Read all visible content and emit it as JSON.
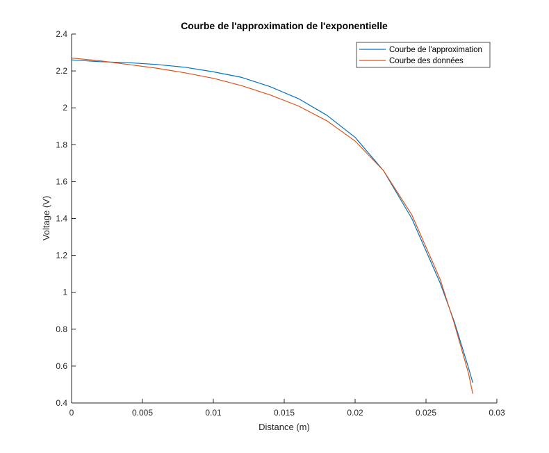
{
  "chart_data": {
    "type": "line",
    "title": "Courbe de l'approximation de l'exponentielle",
    "xlabel": "Distance (m)",
    "ylabel": "Voltage (V)",
    "xlim": [
      0,
      0.03
    ],
    "ylim": [
      0.4,
      2.4
    ],
    "xticks": [
      "0",
      "0.005",
      "0.01",
      "0.015",
      "0.02",
      "0.025",
      "0.03"
    ],
    "yticks": [
      "0.4",
      "0.6",
      "0.8",
      "1",
      "1.2",
      "1.4",
      "1.6",
      "1.8",
      "2",
      "2.2",
      "2.4"
    ],
    "grid": false,
    "legend_position": "top-right",
    "series": [
      {
        "name": "Courbe de l'approximation",
        "color": "#0072BD",
        "x": [
          0,
          0.002,
          0.004,
          0.006,
          0.008,
          0.01,
          0.012,
          0.014,
          0.016,
          0.018,
          0.02,
          0.022,
          0.024,
          0.026,
          0.027,
          0.028,
          0.0283
        ],
        "y": [
          2.26,
          2.25,
          2.245,
          2.235,
          2.22,
          2.195,
          2.165,
          2.115,
          2.05,
          1.96,
          1.84,
          1.66,
          1.4,
          1.05,
          0.84,
          0.59,
          0.51
        ]
      },
      {
        "name": "Courbe des données",
        "color": "#D95319",
        "x": [
          0,
          0.002,
          0.004,
          0.006,
          0.008,
          0.01,
          0.012,
          0.014,
          0.016,
          0.018,
          0.02,
          0.022,
          0.024,
          0.026,
          0.027,
          0.028,
          0.0283
        ],
        "y": [
          2.27,
          2.255,
          2.235,
          2.215,
          2.19,
          2.16,
          2.12,
          2.07,
          2.01,
          1.93,
          1.82,
          1.66,
          1.42,
          1.07,
          0.83,
          0.56,
          0.45
        ]
      }
    ]
  }
}
